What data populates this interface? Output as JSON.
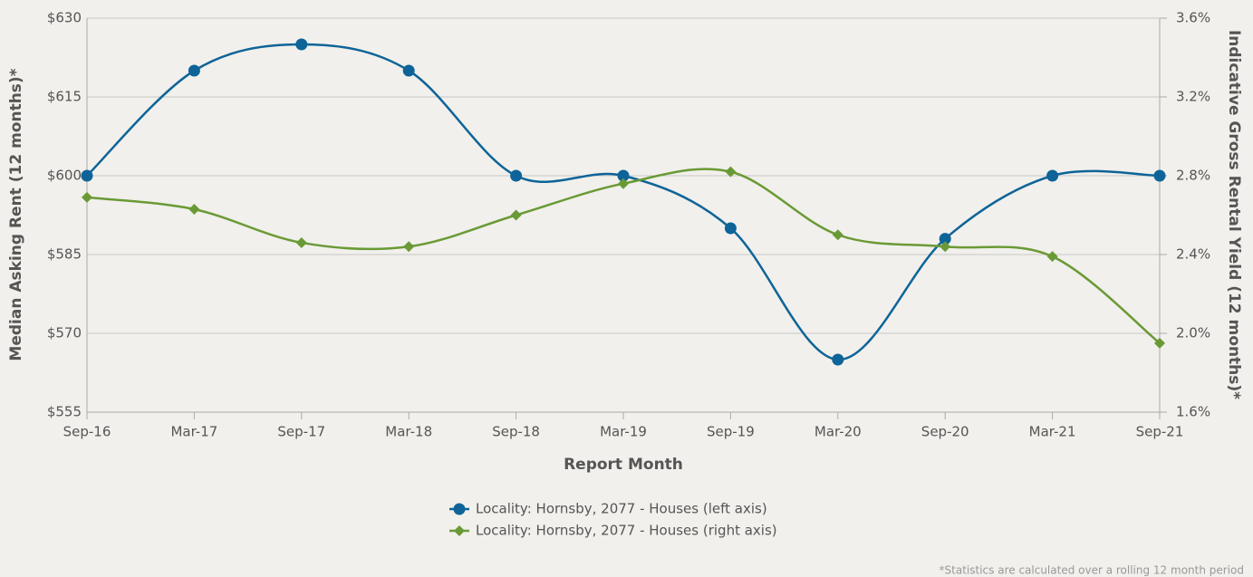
{
  "chart_data": {
    "type": "line",
    "x_label": "Report Month",
    "y_label": "Median Asking Rent (12 months)*",
    "y2_label": "Indicative Gross Rental Yield (12 months)*",
    "footnote": "*Statistics are calculated over a rolling 12 month period",
    "categories": [
      "Sep-16",
      "Mar-17",
      "Sep-17",
      "Mar-18",
      "Sep-18",
      "Mar-19",
      "Sep-19",
      "Mar-20",
      "Sep-20",
      "Mar-21",
      "Sep-21"
    ],
    "series": [
      {
        "name": "Locality: Hornsby, 2077 - Houses (left axis)",
        "color": "#0e6498",
        "marker": "circle",
        "values": [
          600,
          620,
          625,
          620,
          600,
          600,
          590,
          565,
          588,
          600,
          600
        ]
      },
      {
        "name": "Locality: Hornsby, 2077 - Houses (right axis)",
        "color": "#6a9a35",
        "marker": "diamond",
        "axis": "y2",
        "values": [
          2.69,
          2.63,
          2.46,
          2.44,
          2.6,
          2.76,
          2.82,
          2.5,
          2.44,
          2.39,
          1.95
        ]
      }
    ],
    "ylim": [
      555,
      630
    ],
    "yticks": [
      {
        "value": 555,
        "label": "$555"
      },
      {
        "value": 570,
        "label": "$570"
      },
      {
        "value": 585,
        "label": "$585"
      },
      {
        "value": 600,
        "label": "$600"
      },
      {
        "value": 615,
        "label": "$615"
      },
      {
        "value": 630,
        "label": "$630"
      }
    ],
    "y2lim": [
      1.6,
      3.6
    ],
    "y2ticks": [
      {
        "value": 1.6,
        "label": "1.6%"
      },
      {
        "value": 2.0,
        "label": "2.0%"
      },
      {
        "value": 2.4,
        "label": "2.4%"
      },
      {
        "value": 2.8,
        "label": "2.8%"
      },
      {
        "value": 3.2,
        "label": "3.2%"
      },
      {
        "value": 3.6,
        "label": "3.6%"
      }
    ],
    "grid": true,
    "legend": "bottom"
  }
}
